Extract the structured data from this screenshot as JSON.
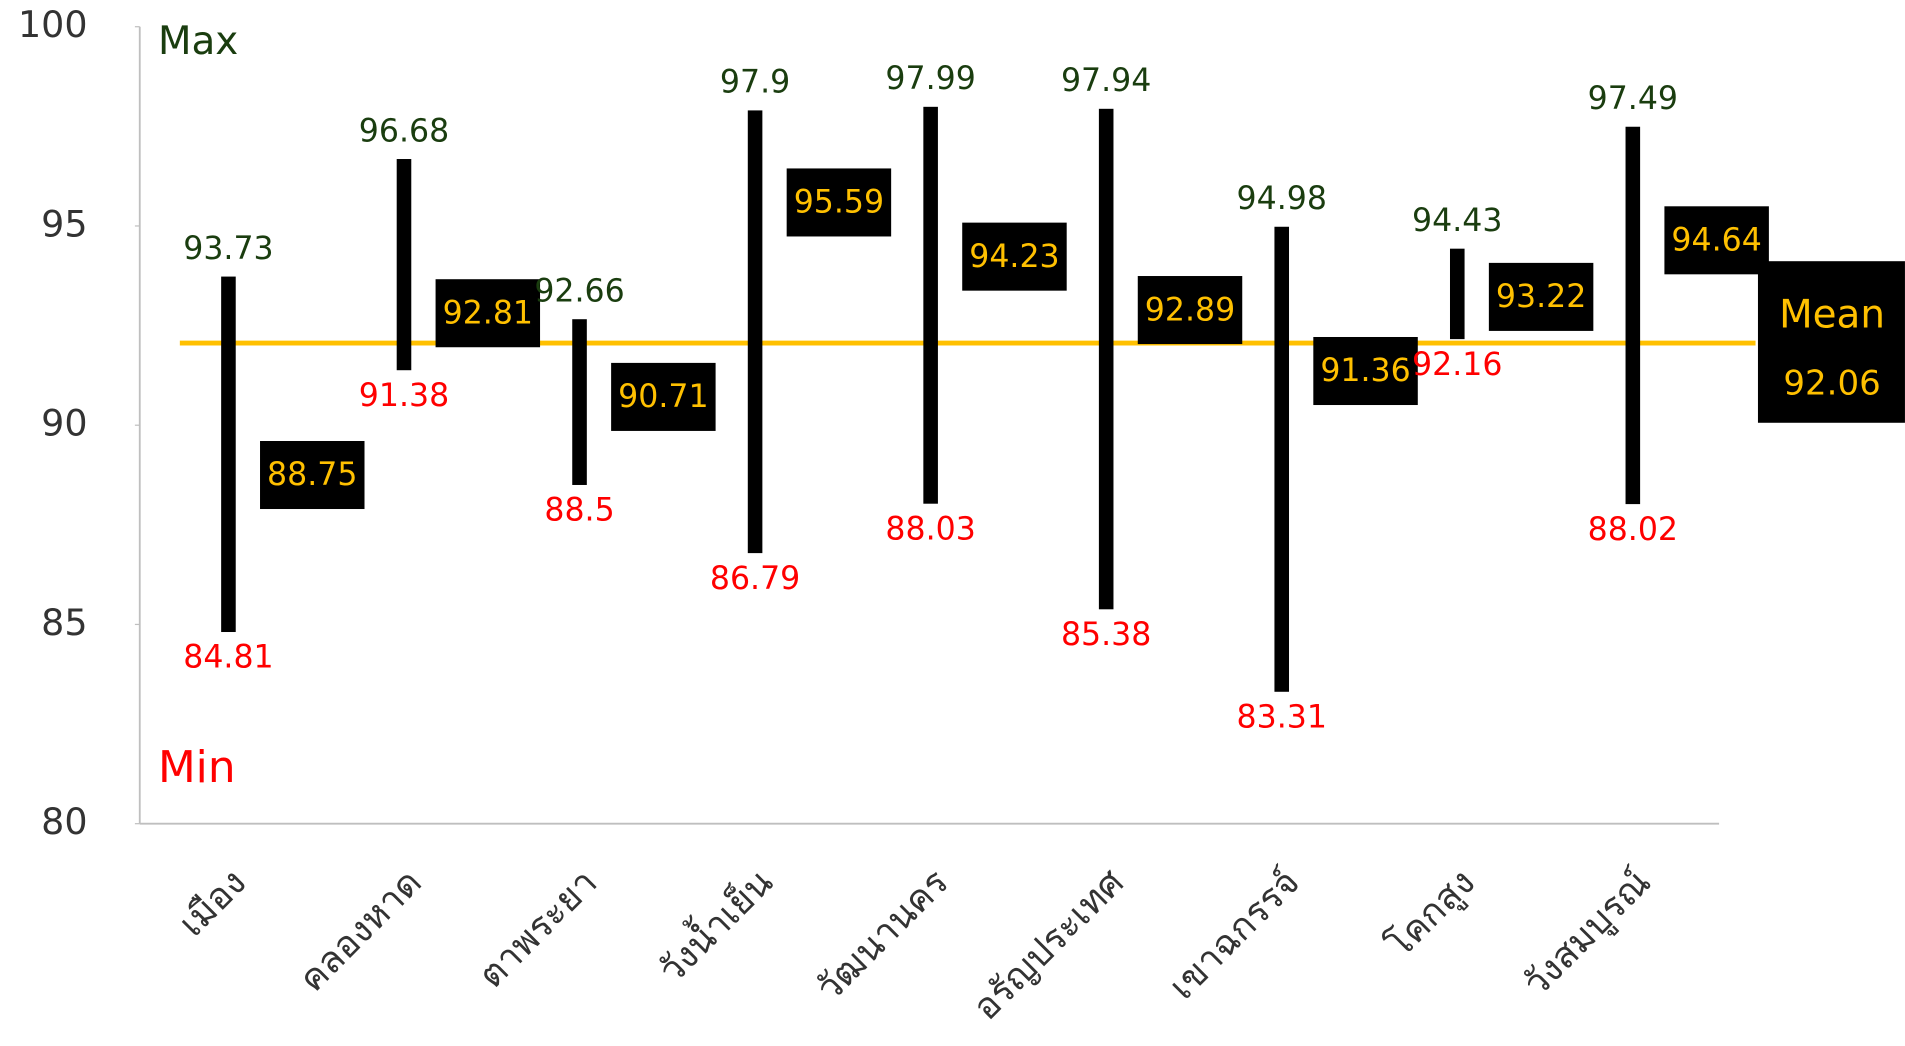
{
  "chart_data": {
    "type": "range",
    "categories": [
      "เมือง",
      "คลองหาด",
      "ตาพระยา",
      "วังน้ำเย็น",
      "วัฒนานคร",
      "อรัญประเทศ",
      "เขาฉกรรจ์",
      "โคกสูง",
      "วังสมบูรณ์"
    ],
    "series": [
      {
        "name": "Max",
        "color": "#1a3d0f",
        "values": [
          93.73,
          96.68,
          92.66,
          97.9,
          97.99,
          97.94,
          94.98,
          94.43,
          97.49
        ]
      },
      {
        "name": "Min",
        "color": "#ff0000",
        "values": [
          84.81,
          91.38,
          88.5,
          86.79,
          88.03,
          85.38,
          83.31,
          92.16,
          88.02
        ]
      },
      {
        "name": "Mean",
        "color": "#ffc000",
        "values": [
          88.75,
          92.81,
          90.71,
          95.59,
          94.23,
          92.89,
          91.36,
          93.22,
          94.64
        ]
      }
    ],
    "overall_mean": 92.06,
    "bar_color": "#000000",
    "ylim": [
      80,
      100
    ],
    "yticks": [
      80,
      85,
      90,
      95,
      100
    ]
  }
}
